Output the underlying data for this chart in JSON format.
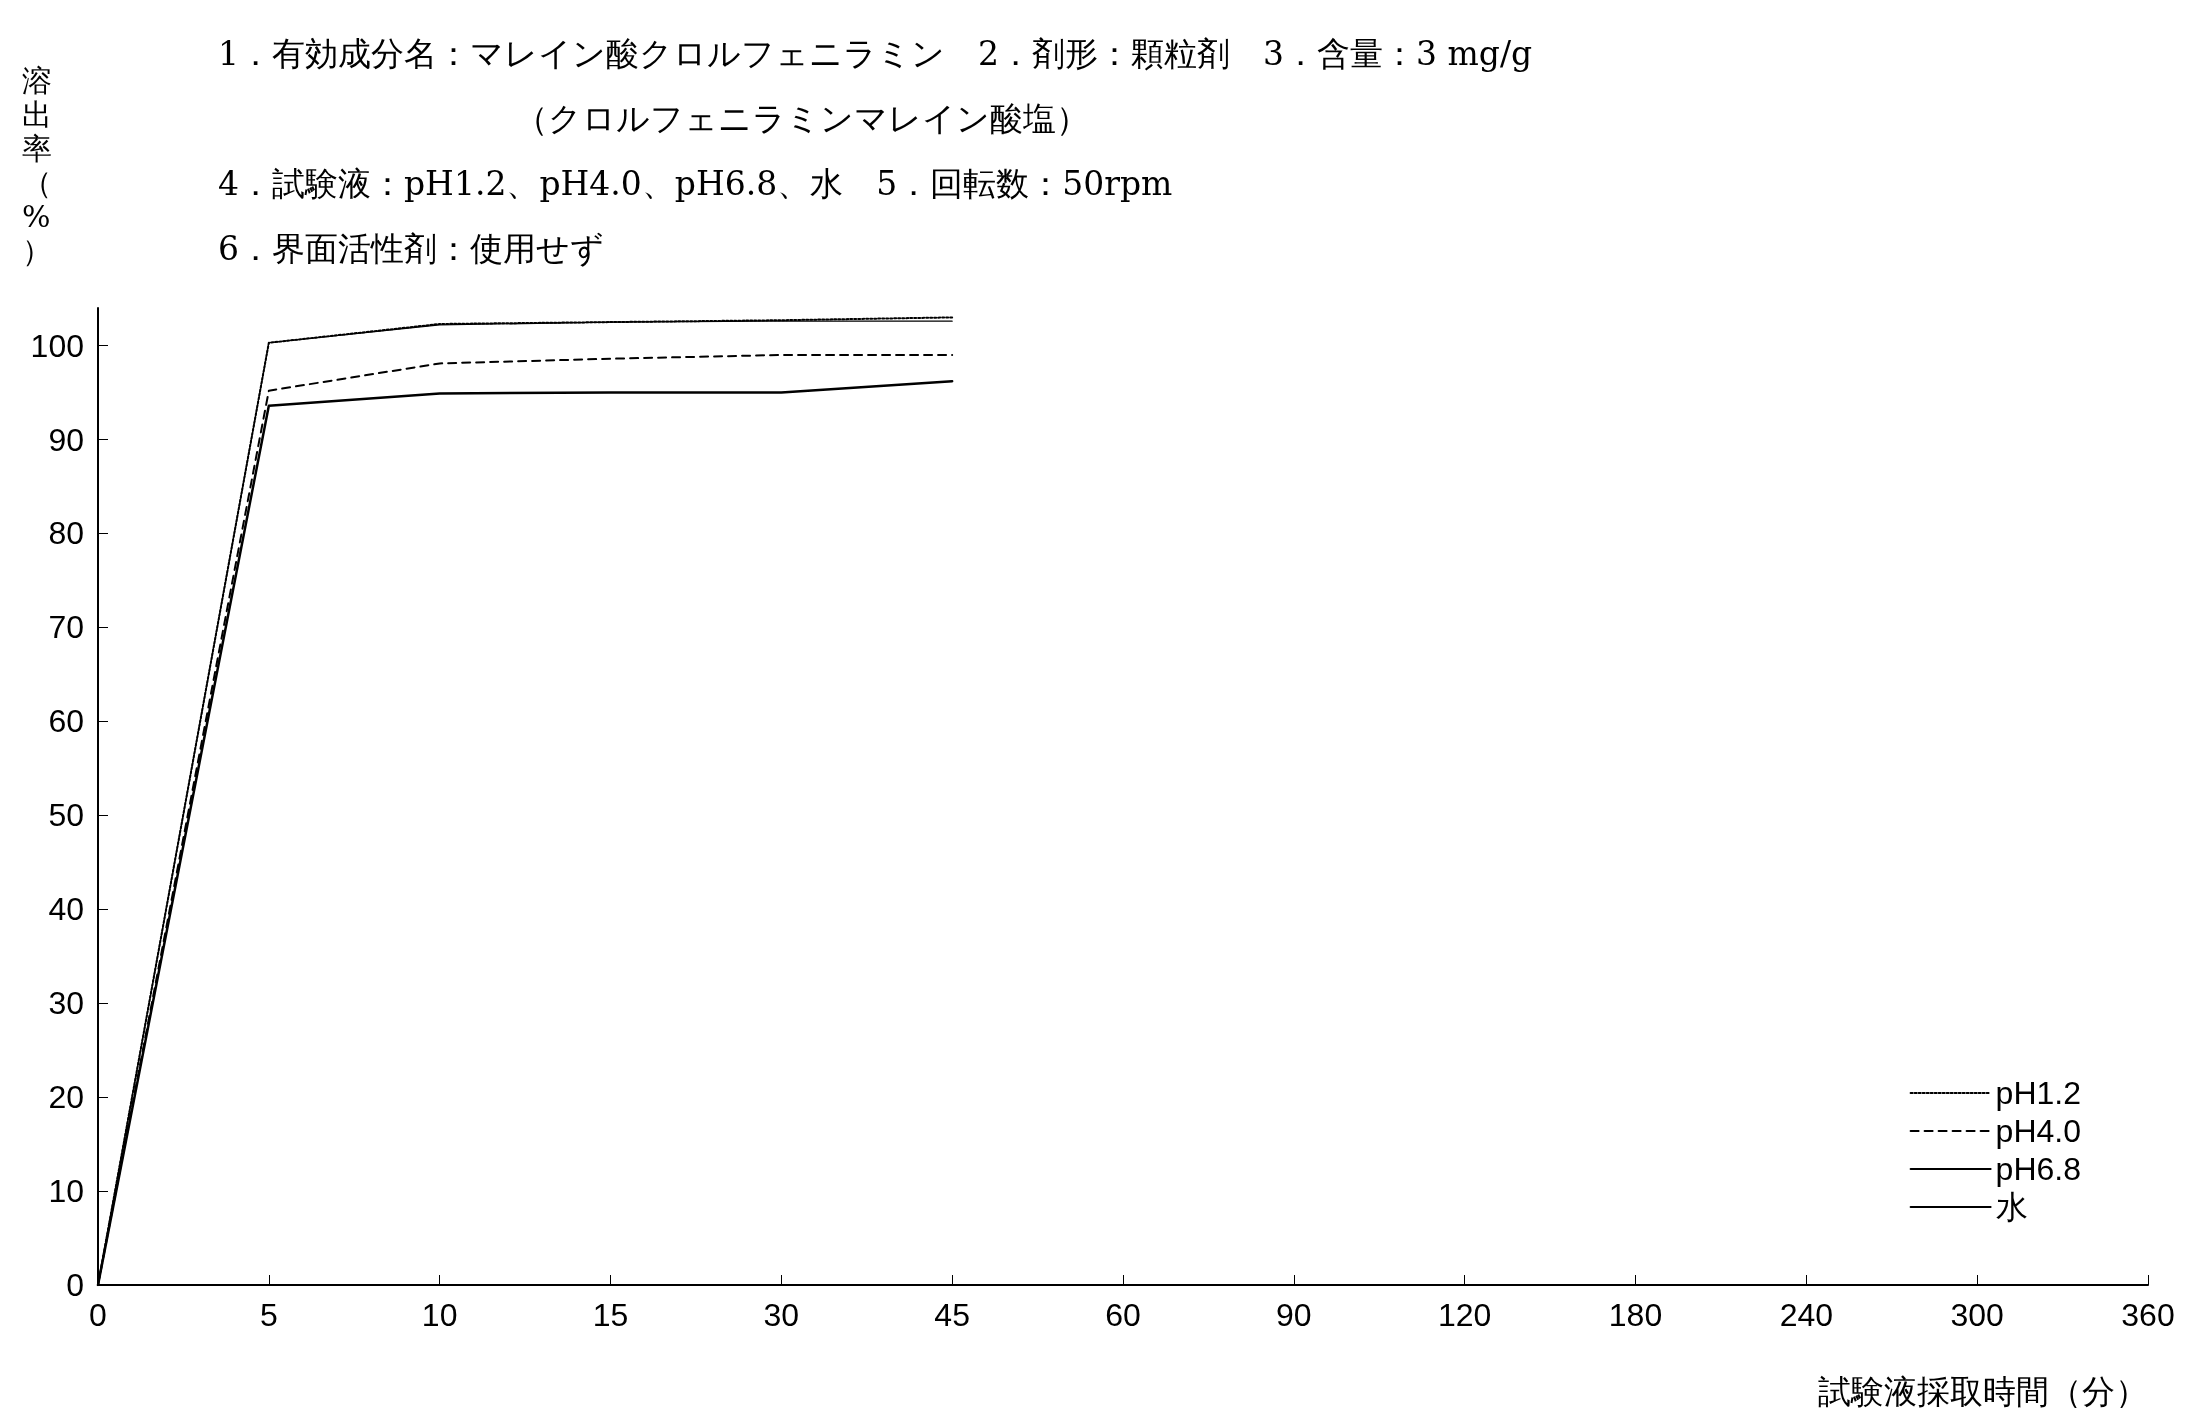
{
  "chart_data": {
    "type": "line",
    "title": "1．有効成分名：マレイン酸クロルフェニラミン　2．剤形：顆粒剤　3．含量：3 mg/g\n　　　　　　　　　（クロルフェニラミンマレイン酸塩）\n4．試験液：pH1.2、pH4.0、pH6.8、水　5．回転数：50rpm\n6．界面活性剤：使用せず",
    "ylabel": "溶出率（%）",
    "xlabel": "試験液採取時間（分）",
    "categories": [
      "0",
      "5",
      "10",
      "15",
      "30",
      "45",
      "60",
      "90",
      "120",
      "180",
      "240",
      "300",
      "360"
    ],
    "series": [
      {
        "name": "pH1.2",
        "color": "#000000",
        "line_style": "dotted",
        "values": [
          0,
          100.3,
          102.3,
          102.5,
          102.7,
          103,
          null,
          null,
          null,
          null,
          null,
          null,
          null
        ]
      },
      {
        "name": "pH4.0",
        "color": "#000000",
        "line_style": "dashed",
        "values": [
          0,
          95.2,
          98.1,
          98.6,
          99,
          99,
          null,
          null,
          null,
          null,
          null,
          null,
          null
        ]
      },
      {
        "name": "pH6.8",
        "color": "#000000",
        "line_style": "solid",
        "values": [
          0,
          100.3,
          102.2,
          102.5,
          102.6,
          102.6,
          null,
          null,
          null,
          null,
          null,
          null,
          null
        ]
      },
      {
        "name": "水",
        "color": "#000000",
        "line_style": "solid",
        "values": [
          0,
          93.6,
          94.9,
          95,
          95,
          96.2,
          null,
          null,
          null,
          null,
          null,
          null,
          null
        ]
      }
    ],
    "ylim": [
      0,
      104
    ],
    "yticks": [
      0,
      10,
      20,
      30,
      40,
      50,
      60,
      70,
      80,
      90,
      100
    ],
    "grid": false,
    "legend": "bottom right",
    "marker": "none"
  }
}
